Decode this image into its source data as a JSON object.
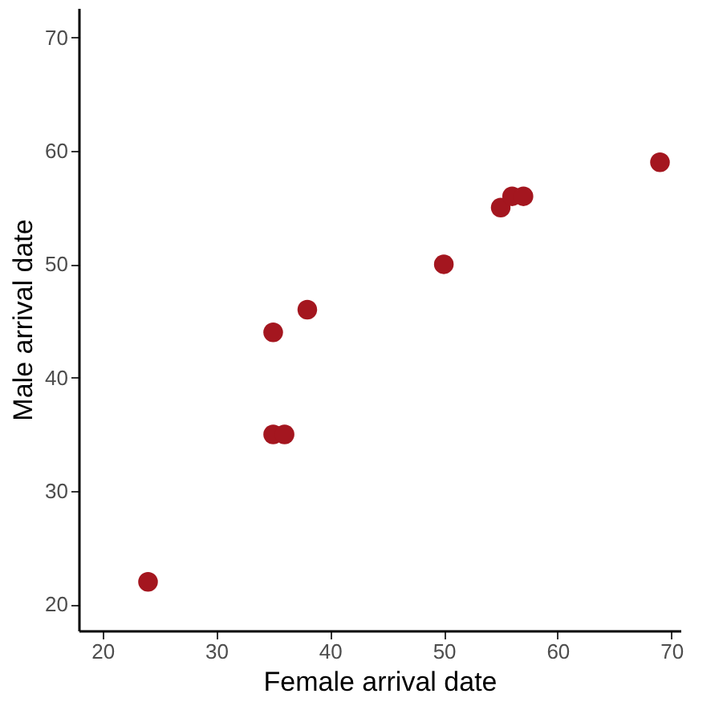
{
  "chart_data": {
    "type": "scatter",
    "xlabel": "Female arrival date",
    "ylabel": "Male arrival date",
    "x": [
      24,
      35,
      35,
      36,
      38,
      50,
      55,
      56,
      57,
      69
    ],
    "series": [
      {
        "color": "#a4161f",
        "values": [
          22,
          44,
          35,
          35,
          46,
          50,
          55,
          56,
          56,
          59
        ]
      }
    ],
    "xlim": [
      17.9,
      70.8
    ],
    "ylim": [
      17.7,
      72.6
    ],
    "xticks": [
      20,
      30,
      40,
      50,
      60,
      70
    ],
    "yticks": [
      20,
      30,
      40,
      50,
      60,
      70
    ],
    "grid": false,
    "marker": "circle"
  }
}
